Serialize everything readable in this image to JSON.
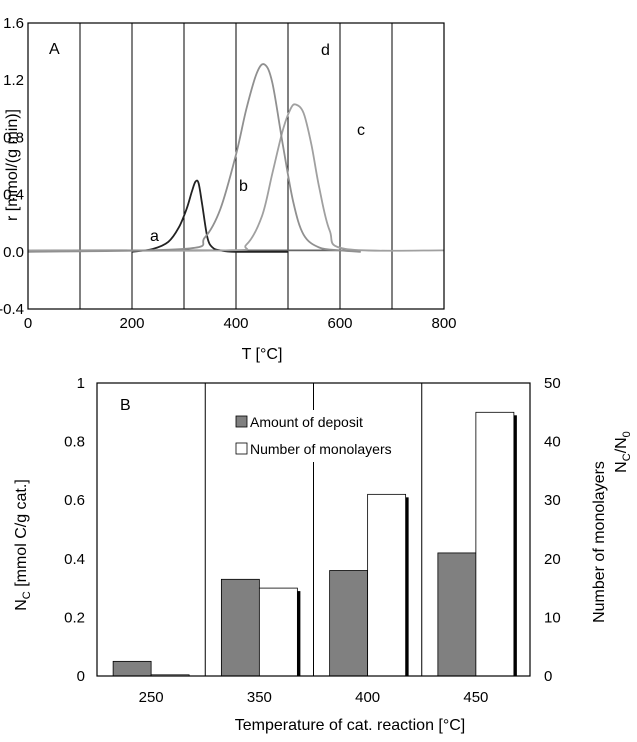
{
  "colors": {
    "curve_a": "#666666",
    "curve_b": "#222222",
    "curve_c": "#a0a0a0",
    "curve_d": "#909090",
    "gridline": "#000000",
    "deposit_bar": "#808080",
    "monolayer_bar": "#ffffff",
    "bar_shadow": "#000000"
  },
  "chart_data": [
    {
      "type": "line",
      "panel_label": "A",
      "xlabel": "T [°C]",
      "ylabel": "r [mmol/(g min)]",
      "xlim": [
        0,
        800
      ],
      "ylim": [
        -0.4,
        1.6
      ],
      "x_ticks": [
        "0",
        "200",
        "400",
        "600",
        "800"
      ],
      "y_ticks": [
        "-0.4",
        "0.0",
        "0.4",
        "0.8",
        "1.2",
        "1.6"
      ],
      "x_gridlines": [
        100,
        200,
        300,
        400,
        500,
        600,
        700
      ],
      "grid": "vertical",
      "series": [
        {
          "name": "a",
          "color": "#666666",
          "x": [
            0,
            100,
            200,
            300,
            400,
            500,
            600,
            640
          ],
          "y": [
            0.01,
            0.01,
            0.01,
            0.01,
            0.01,
            0.01,
            0.01,
            0.01
          ]
        },
        {
          "name": "b",
          "color": "#222222",
          "x": [
            200,
            240,
            270,
            290,
            305,
            315,
            322,
            328,
            335,
            345,
            355,
            370,
            400,
            500
          ],
          "y": [
            0.0,
            0.02,
            0.07,
            0.17,
            0.3,
            0.42,
            0.49,
            0.48,
            0.33,
            0.1,
            0.03,
            0.01,
            0.0,
            0.0
          ]
        },
        {
          "name": "c",
          "color": "#a0a0a0",
          "x": [
            0,
            380,
            420,
            450,
            470,
            490,
            505,
            515,
            530,
            545,
            560,
            580,
            610,
            800
          ],
          "y": [
            0.01,
            0.01,
            0.05,
            0.25,
            0.55,
            0.85,
            1.0,
            1.03,
            0.97,
            0.75,
            0.45,
            0.15,
            0.02,
            0.01
          ]
        },
        {
          "name": "d",
          "color": "#909090",
          "x": [
            0,
            300,
            340,
            370,
            400,
            420,
            440,
            455,
            470,
            490,
            510,
            530,
            560,
            600,
            640
          ],
          "y": [
            0.0,
            0.02,
            0.1,
            0.3,
            0.68,
            1.0,
            1.25,
            1.31,
            1.18,
            0.75,
            0.35,
            0.12,
            0.03,
            0.01,
            0.0
          ]
        }
      ]
    },
    {
      "type": "bar",
      "panel_label": "B",
      "xlabel": "Temperature of cat. reaction [°C]",
      "ylabel": "N",
      "ylabel_sub": "C",
      "ylabel_rest": " [mmol C/g cat.]",
      "y2label_line1": "Number of monolayers",
      "y2label_line2_a": "N",
      "y2label_line2_sub1": "C",
      "y2label_line2_b": "/N",
      "y2label_line2_sub2": "0",
      "categories": [
        "250",
        "350",
        "400",
        "450"
      ],
      "ylim": [
        0,
        1
      ],
      "y2lim": [
        0,
        50
      ],
      "y_ticks": [
        "0",
        "0.2",
        "0.4",
        "0.6",
        "0.8",
        "1"
      ],
      "y2_ticks": [
        "0",
        "10",
        "20",
        "30",
        "40",
        "50"
      ],
      "grid": "vertical",
      "legend": "top-center",
      "series": [
        {
          "name": "Amount of deposit",
          "axis": "left",
          "color": "#808080",
          "values": [
            0.05,
            0.33,
            0.36,
            0.42
          ]
        },
        {
          "name": "Number of monolayers",
          "axis": "right",
          "color": "#ffffff",
          "values": [
            0.2,
            15,
            31,
            45
          ]
        }
      ]
    }
  ]
}
